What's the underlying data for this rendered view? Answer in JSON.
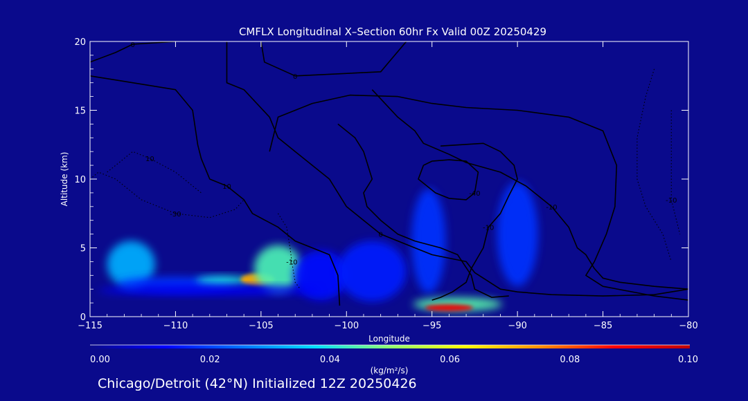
{
  "chart_data": {
    "type": "heatmap",
    "title": "CMFLX Longitudinal X–Section 60hr  Fx Valid 00Z 20250429",
    "xlabel": "Longitude",
    "ylabel": "Altitude (km)",
    "xlim": [
      -115,
      -80
    ],
    "ylim": [
      0,
      20
    ],
    "x_ticks": [
      -115,
      -110,
      -105,
      -100,
      -95,
      -90,
      -85,
      -80
    ],
    "x_tick_labels": [
      "−115",
      "−110",
      "−105",
      "−100",
      "−95",
      "−90",
      "−85",
      "−80"
    ],
    "y_ticks": [
      0,
      5,
      10,
      15,
      20
    ],
    "y_tick_labels": [
      "0",
      "5",
      "10",
      "15",
      "20"
    ],
    "colorbar": {
      "label": "(kg/m²/s)",
      "min": 0.0,
      "max": 0.1,
      "ticks": [
        0.0,
        0.02,
        0.04,
        0.06,
        0.08,
        0.1
      ],
      "tick_labels": [
        "0.00",
        "0.02",
        "0.04",
        "0.06",
        "0.08",
        "0.10"
      ],
      "colors": [
        "#0a0a8c",
        "#0000ff",
        "#0070ff",
        "#00e0ff",
        "#90ff70",
        "#ffff00",
        "#ff9000",
        "#ff0000",
        "#c00000"
      ]
    },
    "flux_regions": [
      {
        "lon": -112.6,
        "alt": 3.8,
        "dlon": 1.4,
        "dalt": 1.7,
        "value": 0.032
      },
      {
        "lon": -110.0,
        "alt": 2.4,
        "dlon": 3.4,
        "dalt": 0.5,
        "value": 0.018
      },
      {
        "lon": -107.2,
        "alt": 2.6,
        "dlon": 1.6,
        "dalt": 0.35,
        "value": 0.04
      },
      {
        "lon": -105.2,
        "alt": 2.7,
        "dlon": 1.0,
        "dalt": 0.45,
        "value": 0.072
      },
      {
        "lon": -104.0,
        "alt": 3.5,
        "dlon": 1.4,
        "dalt": 1.7,
        "value": 0.044
      },
      {
        "lon": -101.5,
        "alt": 3.0,
        "dlon": 1.6,
        "dalt": 1.8,
        "value": 0.014
      },
      {
        "lon": -98.5,
        "alt": 3.3,
        "dlon": 2.0,
        "dalt": 2.2,
        "value": 0.016
      },
      {
        "lon": -95.2,
        "alt": 5.5,
        "dlon": 1.0,
        "dalt": 3.8,
        "value": 0.018
      },
      {
        "lon": -90.0,
        "alt": 6.0,
        "dlon": 1.2,
        "dalt": 3.8,
        "value": 0.018
      },
      {
        "lon": -93.5,
        "alt": 0.9,
        "dlon": 2.6,
        "dalt": 0.5,
        "value": 0.045
      },
      {
        "lon": -94.0,
        "alt": 0.65,
        "dlon": 1.4,
        "dalt": 0.25,
        "value": 0.09
      },
      {
        "lon": -108.0,
        "alt": 1.9,
        "dlon": 6.5,
        "dalt": 0.35,
        "value": 0.012
      }
    ],
    "contours": [
      {
        "label": "10",
        "value": 10,
        "style": "solid",
        "points": [
          [
            -115,
            17.5
          ],
          [
            -113.5,
            17.2
          ],
          [
            -111.5,
            16.8
          ],
          [
            -110,
            16.5
          ],
          [
            -109,
            15
          ],
          [
            -108.7,
            12.5
          ],
          [
            -108.5,
            11.5
          ],
          [
            -108,
            10
          ],
          [
            -107,
            9.5
          ],
          [
            -106,
            8.5
          ],
          [
            -105.5,
            7.5
          ],
          [
            -104,
            6.5
          ],
          [
            -103,
            5.5
          ],
          [
            -102,
            5
          ],
          [
            -101,
            4.5
          ],
          [
            -100.5,
            3
          ],
          [
            -100.4,
            0.8
          ]
        ]
      },
      {
        "label": "0",
        "value": 0,
        "style": "solid",
        "points": [
          [
            -115,
            18.5
          ],
          [
            -113.5,
            19.2
          ],
          [
            -112.5,
            19.8
          ],
          [
            -110,
            20
          ]
        ]
      },
      {
        "label": "0",
        "value": 0,
        "style": "solid",
        "points": [
          [
            -105,
            20
          ],
          [
            -104.8,
            18.5
          ],
          [
            -103,
            17.5
          ],
          [
            -98,
            17.8
          ],
          [
            -96.5,
            20
          ]
        ]
      },
      {
        "label": "0",
        "value": 0,
        "style": "solid",
        "points": [
          [
            -107,
            20
          ],
          [
            -107,
            17
          ],
          [
            -106,
            16.5
          ],
          [
            -104.5,
            14.5
          ],
          [
            -104,
            13
          ],
          [
            -103,
            12
          ],
          [
            -102,
            11
          ],
          [
            -101,
            10
          ],
          [
            -100,
            8
          ],
          [
            -99,
            7
          ],
          [
            -98,
            6
          ],
          [
            -96,
            5
          ],
          [
            -95,
            4.5
          ],
          [
            -93,
            4
          ],
          [
            -92.5,
            3.2
          ],
          [
            -91,
            2
          ],
          [
            -90,
            1.8
          ],
          [
            -88,
            1.6
          ],
          [
            -85,
            1.5
          ],
          [
            -82,
            1.6
          ],
          [
            -80,
            2
          ]
        ]
      },
      {
        "label": "",
        "value": -10,
        "style": "solid",
        "points": [
          [
            -104.5,
            12
          ],
          [
            -104,
            14.5
          ],
          [
            -102,
            15.5
          ],
          [
            -99.8,
            16.1
          ],
          [
            -97,
            16
          ],
          [
            -95,
            15.5
          ],
          [
            -93,
            15.2
          ],
          [
            -90,
            15
          ],
          [
            -87,
            14.5
          ],
          [
            -85,
            13.5
          ],
          [
            -84.2,
            11
          ],
          [
            -84.3,
            8
          ],
          [
            -84.8,
            6
          ],
          [
            -85.5,
            4
          ],
          [
            -86,
            3
          ],
          [
            -85,
            2.2
          ],
          [
            -82,
            1.5
          ],
          [
            -80,
            1.2
          ]
        ]
      },
      {
        "label": "-10",
        "value": -10,
        "style": "solid",
        "points": [
          [
            -98.5,
            16.5
          ],
          [
            -97,
            14.5
          ],
          [
            -96,
            13.5
          ],
          [
            -95.5,
            12.6
          ],
          [
            -94,
            11.8
          ],
          [
            -93,
            11.2
          ],
          [
            -91,
            10.5
          ],
          [
            -89.5,
            9.5
          ],
          [
            -88,
            8
          ],
          [
            -87,
            6.5
          ],
          [
            -86.5,
            5
          ],
          [
            -86,
            4.5
          ],
          [
            -85.5,
            3.5
          ],
          [
            -85,
            2.8
          ],
          [
            -84,
            2.5
          ],
          [
            -82,
            2.2
          ],
          [
            -80,
            2
          ]
        ]
      },
      {
        "label": "",
        "value": -30,
        "style": "solid",
        "points": [
          [
            -100.5,
            14
          ],
          [
            -99.5,
            13
          ],
          [
            -99,
            12
          ],
          [
            -98.5,
            10
          ],
          [
            -99,
            9
          ],
          [
            -98.8,
            8
          ],
          [
            -98,
            7
          ],
          [
            -97,
            6
          ],
          [
            -96,
            5.5
          ],
          [
            -94.5,
            5
          ],
          [
            -93.5,
            4.5
          ],
          [
            -92.7,
            3
          ],
          [
            -92.5,
            2
          ],
          [
            -91.5,
            1.4
          ],
          [
            -90.5,
            1.5
          ]
        ]
      },
      {
        "label": "-40",
        "value": -40,
        "style": "solid",
        "points": [
          [
            -95.5,
            11
          ],
          [
            -95.8,
            10
          ],
          [
            -94.8,
            9
          ],
          [
            -94,
            8.6
          ],
          [
            -93,
            8.5
          ],
          [
            -92.5,
            9
          ],
          [
            -92.3,
            10.5
          ],
          [
            -93,
            11.3
          ],
          [
            -94,
            11.4
          ],
          [
            -95,
            11.3
          ],
          [
            -95.5,
            11
          ]
        ]
      },
      {
        "label": "-10",
        "value": -10,
        "style": "solid",
        "points": [
          [
            -94.5,
            12.4
          ],
          [
            -92,
            12.6
          ],
          [
            -91,
            12
          ],
          [
            -90.2,
            11
          ],
          [
            -90,
            10
          ],
          [
            -90.5,
            8.8
          ],
          [
            -91,
            7.5
          ],
          [
            -91.7,
            6.5
          ],
          [
            -92,
            5
          ],
          [
            -92.7,
            3.5
          ],
          [
            -93,
            2.5
          ],
          [
            -93.8,
            1.8
          ],
          [
            -94.5,
            1.4
          ],
          [
            -95,
            1.2
          ]
        ]
      },
      {
        "label": "10",
        "value": 10,
        "style": "dotted",
        "points": [
          [
            -114,
            10.5
          ],
          [
            -112.5,
            12
          ],
          [
            -111.5,
            11.5
          ],
          [
            -110,
            10.5
          ],
          [
            -108.5,
            9
          ]
        ]
      },
      {
        "label": "-30",
        "value": -30,
        "style": "dotted",
        "points": [
          [
            -115,
            10
          ],
          [
            -114.5,
            10.5
          ],
          [
            -113.5,
            10
          ],
          [
            -112,
            8.5
          ],
          [
            -110,
            7.5
          ],
          [
            -108,
            7.2
          ],
          [
            -106.5,
            7.8
          ],
          [
            -106,
            8.5
          ]
        ]
      },
      {
        "label": "-10",
        "value": -10,
        "style": "dotted",
        "points": [
          [
            -104,
            7.5
          ],
          [
            -103.5,
            6.5
          ],
          [
            -103.3,
            5
          ],
          [
            -103.2,
            4
          ],
          [
            -103,
            2.5
          ],
          [
            -102.7,
            2
          ]
        ]
      },
      {
        "label": "",
        "value": 0,
        "style": "dotted",
        "points": [
          [
            -82,
            18
          ],
          [
            -82.5,
            16
          ],
          [
            -83,
            13
          ],
          [
            -83,
            10
          ],
          [
            -82.5,
            8
          ],
          [
            -81.5,
            6
          ],
          [
            -81,
            4
          ]
        ]
      },
      {
        "label": "-10",
        "value": -10,
        "style": "dotted",
        "points": [
          [
            -81,
            15
          ],
          [
            -81,
            12
          ],
          [
            -81,
            8.5
          ],
          [
            -80.5,
            6
          ]
        ]
      }
    ]
  },
  "footer": {
    "caption": "Chicago/Detroit (42°N) Initialized 12Z 20250426"
  }
}
